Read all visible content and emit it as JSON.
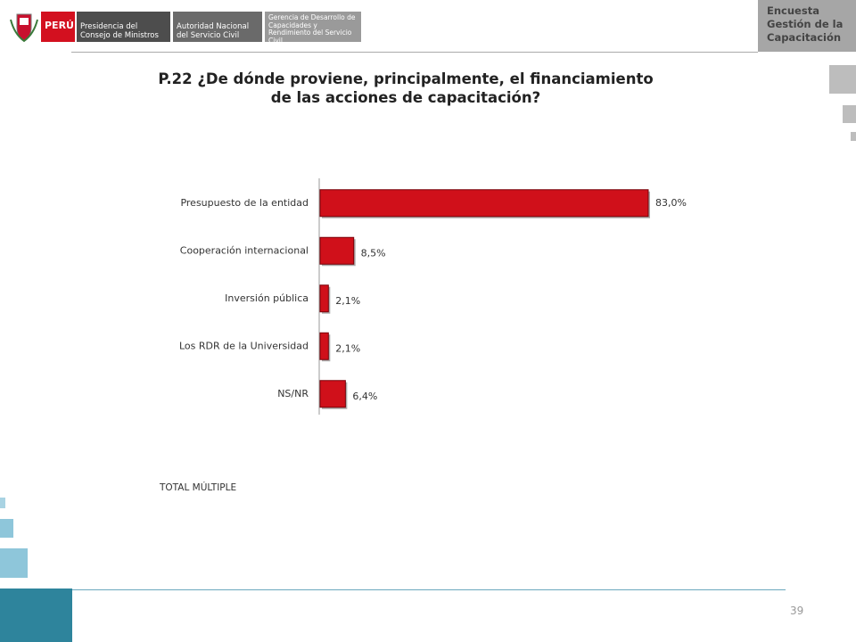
{
  "header": {
    "country": "PERÚ",
    "entity_1": "Presidencia del Consejo de Ministros",
    "entity_2": "Autoridad Nacional del Servicio Civil",
    "entity_3": "Gerencia de Desarrollo de Capacidades y Rendimiento del Servicio Civil",
    "survey": "Encuesta Gestión de la Capacitación"
  },
  "chart_data": {
    "type": "bar",
    "orientation": "horizontal",
    "title": "P.22 ¿De dónde  proviene, principalmente, el financiamiento de las acciones de capacitación?",
    "categories": [
      "Presupuesto de la entidad",
      "Cooperación internacional",
      "Inversión pública",
      "Los RDR de la Universidad",
      "NS/NR"
    ],
    "values": [
      83.0,
      8.5,
      2.1,
      2.1,
      6.4
    ],
    "value_labels": [
      "83,0%",
      "8,5%",
      "2,1%",
      "2,1%",
      "6,4%"
    ],
    "color": "#d0101a"
  },
  "note": "TOTAL MÚLTIPLE",
  "page_number": "39"
}
